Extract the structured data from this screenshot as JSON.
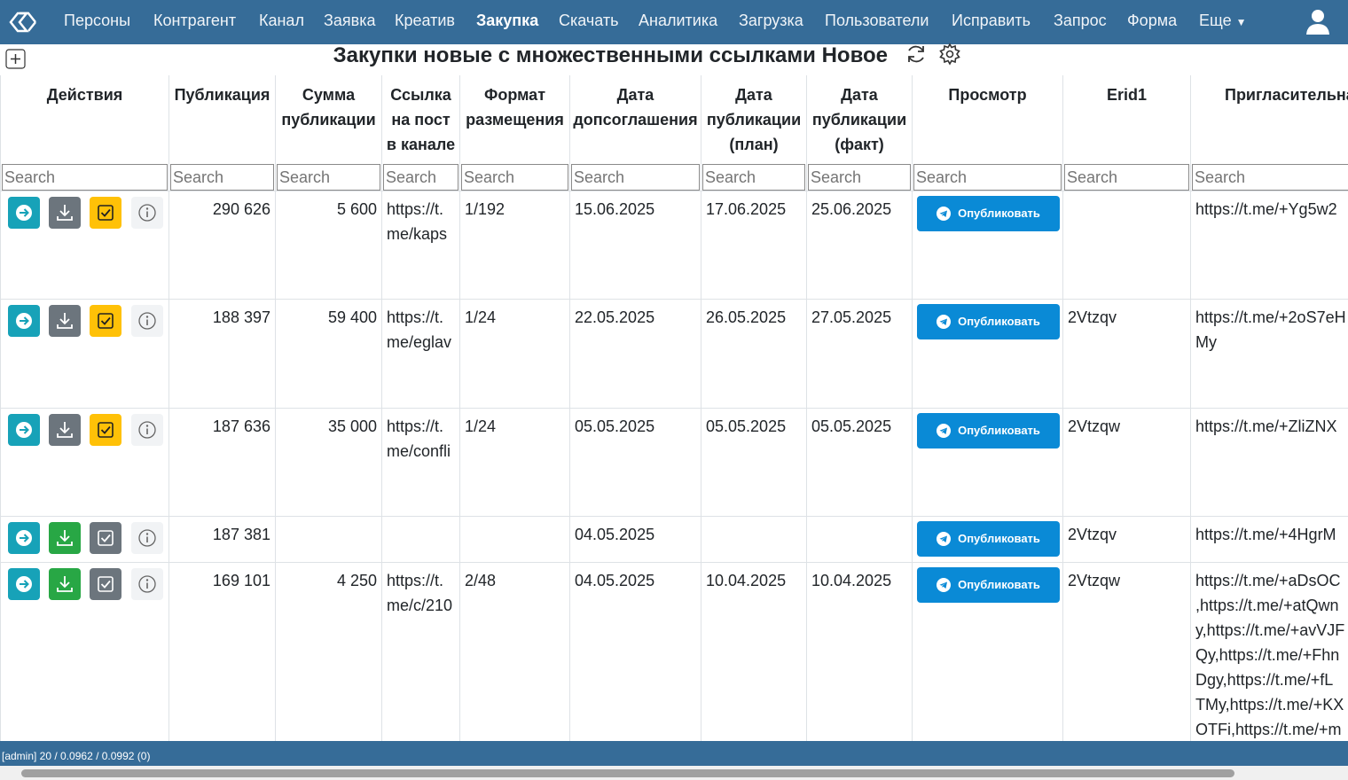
{
  "nav": {
    "items": [
      "Персоны",
      "Контрагент",
      "Канал",
      "Заявка",
      "Креатив",
      "Закупка",
      "Скачать",
      "Аналитика",
      "Загрузка",
      "Пользователи",
      "Исправить",
      "Запрос",
      "Форма"
    ],
    "active_index": 5,
    "more": "Еще"
  },
  "page": {
    "title": "Закупки новые с множественными ссылками Новое"
  },
  "table": {
    "headers": [
      "Действия",
      "Публикация",
      "Сумма публикации",
      "Ссылка на пост в канале",
      "Формат размещения",
      "Дата допсоглашения",
      "Дата публикации (план)",
      "Дата публикации (факт)",
      "Просмотр",
      "Erid1",
      "Пригласительна"
    ],
    "search_placeholder": "Search",
    "publish_button": "Опубликовать",
    "rows": [
      {
        "publication": "290 626",
        "sum": "5 600",
        "link": "https://t.me/kaps",
        "format": "1/192",
        "date_agreement": "15.06.2025",
        "date_plan": "17.06.2025",
        "date_fact": "25.06.2025",
        "erid": null,
        "invite": [
          "https://t.me/+Yg5w2"
        ],
        "download_color": "#6c757d",
        "check_color": "#ffc107"
      },
      {
        "publication": "188 397",
        "sum": "59 400",
        "link": "https://t.me/eglav",
        "format": "1/24",
        "date_agreement": "22.05.2025",
        "date_plan": "26.05.2025",
        "date_fact": "27.05.2025",
        "erid": "2Vtzqv",
        "invite": [
          "https://t.me/+2oS7eH",
          "My"
        ],
        "download_color": "#6c757d",
        "check_color": "#ffc107"
      },
      {
        "publication": "187 636",
        "sum": "35 000",
        "link": "https://t.me/confli",
        "format": "1/24",
        "date_agreement": "05.05.2025",
        "date_plan": "05.05.2025",
        "date_fact": "05.05.2025",
        "erid": "2Vtzqw",
        "invite": [
          "https://t.me/+ZliZNX"
        ],
        "download_color": "#6c757d",
        "check_color": "#ffc107"
      },
      {
        "publication": "187 381",
        "sum": null,
        "link": null,
        "format": null,
        "date_agreement": "04.05.2025",
        "date_plan": null,
        "date_fact": null,
        "erid": "2Vtzqv",
        "invite": [
          "https://t.me/+4HgrM"
        ],
        "download_color": "#28a745",
        "check_color": "#6c757d"
      },
      {
        "publication": "169 101",
        "sum": "4 250",
        "link": "https://t.me/c/210",
        "format": "2/48",
        "date_agreement": "04.05.2025",
        "date_plan": "10.04.2025",
        "date_fact": "10.04.2025",
        "erid": "2Vtzqw",
        "invite": [
          "https://t.me/+aDsOC",
          ",https://t.me/+atQwn",
          "y,https://t.me/+avVJF",
          "Qy,https://t.me/+Fhn",
          "Dgy,https://t.me/+fL",
          "TMy,https://t.me/+KX",
          "OTFi,https://t.me/+m"
        ],
        "download_color": "#28a745",
        "check_color": "#6c757d"
      }
    ]
  },
  "status_bar": {
    "text": "[admin] 20 / 0.0962 / 0.0992 (0)"
  }
}
